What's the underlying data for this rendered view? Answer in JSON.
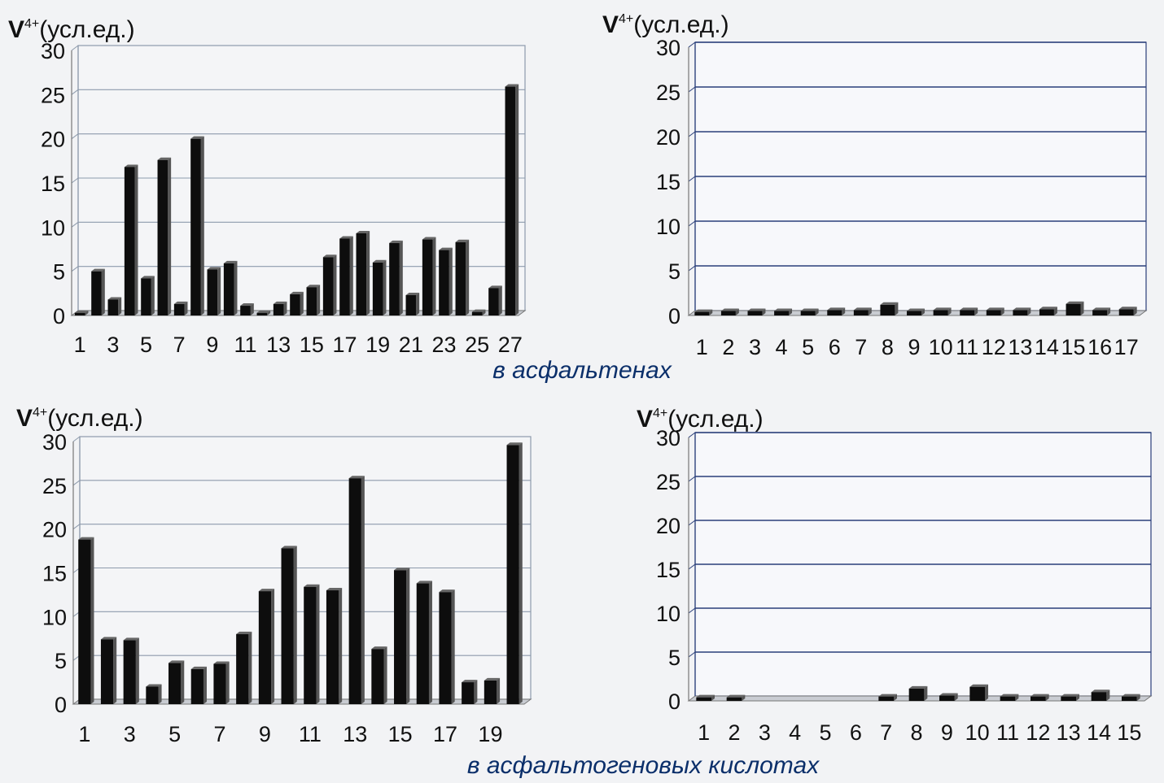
{
  "captions": {
    "top": "в асфальтенах",
    "bottom": "в асфальтогеновых кислотах"
  },
  "chart_data": [
    {
      "type": "bar",
      "ylabel_main": "V",
      "ylabel_sup": "4+",
      "ylabel_unit": "(усл.ед.)",
      "ylim": [
        0,
        30
      ],
      "yticks": [
        "0",
        "5",
        "10",
        "15",
        "20",
        "25",
        "30"
      ],
      "x": [
        1,
        2,
        3,
        4,
        5,
        6,
        7,
        8,
        9,
        10,
        11,
        12,
        13,
        14,
        15,
        16,
        17,
        18,
        19,
        20,
        21,
        22,
        23,
        24,
        25,
        26,
        27
      ],
      "xtick_labels": [
        "1",
        "3",
        "5",
        "7",
        "9",
        "11",
        "13",
        "15",
        "17",
        "19",
        "21",
        "23",
        "25",
        "27"
      ],
      "values": [
        0.3,
        5,
        1.8,
        16.8,
        4.2,
        17.6,
        1.3,
        20,
        5.2,
        5.9,
        1.1,
        0.3,
        1.3,
        2.4,
        3.2,
        6.6,
        8.7,
        9.3,
        6,
        8.2,
        2.3,
        8.6,
        7.4,
        8.3,
        0.4,
        3.1,
        25.9
      ],
      "grid": "horizontal",
      "theme": "black"
    },
    {
      "type": "bar",
      "ylabel_main": "V",
      "ylabel_sup": "4+",
      "ylabel_unit": "(усл.ед.)",
      "ylim": [
        0,
        30
      ],
      "yticks": [
        "0",
        "5",
        "10",
        "15",
        "20",
        "25",
        "30"
      ],
      "x": [
        1,
        2,
        3,
        4,
        5,
        6,
        7,
        8,
        9,
        10,
        11,
        12,
        13,
        14,
        15,
        16,
        17
      ],
      "xtick_labels": [
        "1",
        "2",
        "3",
        "4",
        "5",
        "6",
        "7",
        "8",
        "9",
        "10",
        "11",
        "12",
        "13",
        "14",
        "15",
        "16",
        "17"
      ],
      "values": [
        0.4,
        0.5,
        0.5,
        0.5,
        0.5,
        0.6,
        0.6,
        1.2,
        0.5,
        0.6,
        0.6,
        0.6,
        0.6,
        0.7,
        1.3,
        0.6,
        0.7
      ],
      "grid": "horizontal",
      "theme": "blue"
    },
    {
      "type": "bar",
      "ylabel_main": "V",
      "ylabel_sup": "4+",
      "ylabel_unit": "(усл.ед.)",
      "ylim": [
        0,
        30
      ],
      "yticks": [
        "0",
        "5",
        "10",
        "15",
        "20",
        "25",
        "30"
      ],
      "x": [
        1,
        2,
        3,
        4,
        5,
        6,
        7,
        8,
        9,
        10,
        11,
        12,
        13,
        14,
        15,
        16,
        17,
        18,
        19,
        20
      ],
      "xtick_labels": [
        "1",
        "3",
        "5",
        "7",
        "9",
        "11",
        "13",
        "15",
        "17",
        "19"
      ],
      "values": [
        18.8,
        7.4,
        7.3,
        2,
        4.7,
        4,
        4.6,
        8,
        12.9,
        17.8,
        13.4,
        13,
        25.8,
        6.3,
        15.3,
        13.8,
        12.8,
        2.5,
        2.7,
        29.6
      ],
      "grid": "horizontal",
      "theme": "black"
    },
    {
      "type": "bar",
      "ylabel_main": "V",
      "ylabel_sup": "4+",
      "ylabel_unit": "(усл.ед.)",
      "ylim": [
        0,
        30
      ],
      "yticks": [
        "0",
        "5",
        "10",
        "15",
        "20",
        "25",
        "30"
      ],
      "x": [
        1,
        2,
        3,
        4,
        5,
        6,
        7,
        8,
        9,
        10,
        11,
        12,
        13,
        14,
        15
      ],
      "xtick_labels": [
        "1",
        "2",
        "3",
        "4",
        "5",
        "6",
        "7",
        "8",
        "9",
        "10",
        "11",
        "12",
        "13",
        "14",
        "15"
      ],
      "values": [
        0.4,
        0.4,
        0,
        0,
        0,
        0,
        0.5,
        1.4,
        0.6,
        1.6,
        0.5,
        0.5,
        0.5,
        1,
        0.5
      ],
      "grid": "horizontal",
      "theme": "blue"
    }
  ]
}
